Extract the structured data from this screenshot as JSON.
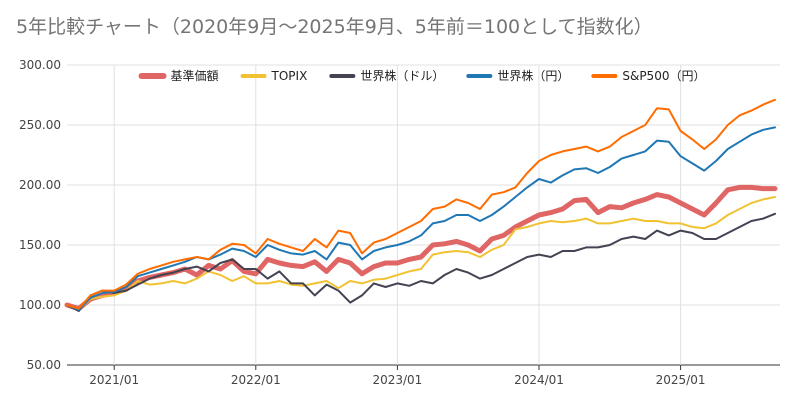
{
  "chart_data": {
    "type": "line",
    "title": "5年比較チャート（2020年9月～2025年9月、5年前＝100として指数化）",
    "xlabel": "",
    "ylabel": "",
    "ylim": [
      50,
      300
    ],
    "yticks": [
      "50.00",
      "100.00",
      "150.00",
      "200.00",
      "250.00",
      "300.00"
    ],
    "xtick_labels": [
      "2021/01",
      "2022/01",
      "2023/01",
      "2024/01",
      "2025/01"
    ],
    "x_start": "2020/09",
    "grid": true,
    "legend_position": "top",
    "x": [
      "2020/09",
      "2020/10",
      "2020/11",
      "2020/12",
      "2021/01",
      "2021/02",
      "2021/03",
      "2021/04",
      "2021/05",
      "2021/06",
      "2021/07",
      "2021/08",
      "2021/09",
      "2021/10",
      "2021/11",
      "2021/12",
      "2022/01",
      "2022/02",
      "2022/03",
      "2022/04",
      "2022/05",
      "2022/06",
      "2022/07",
      "2022/08",
      "2022/09",
      "2022/10",
      "2022/11",
      "2022/12",
      "2023/01",
      "2023/02",
      "2023/03",
      "2023/04",
      "2023/05",
      "2023/06",
      "2023/07",
      "2023/08",
      "2023/09",
      "2023/10",
      "2023/11",
      "2023/12",
      "2024/01",
      "2024/02",
      "2024/03",
      "2024/04",
      "2024/05",
      "2024/06",
      "2024/07",
      "2024/08",
      "2024/09",
      "2024/10",
      "2024/11",
      "2024/12",
      "2025/01",
      "2025/02",
      "2025/03",
      "2025/04",
      "2025/05",
      "2025/06",
      "2025/07",
      "2025/08",
      "2025/09"
    ],
    "series": [
      {
        "name": "基準価額",
        "color": "#e06666",
        "values": [
          100,
          97,
          105,
          108,
          110,
          113,
          120,
          123,
          125,
          127,
          130,
          125,
          133,
          130,
          137,
          128,
          126,
          138,
          135,
          133,
          132,
          136,
          128,
          138,
          135,
          126,
          132,
          135,
          135,
          138,
          140,
          150,
          151,
          153,
          150,
          145,
          155,
          158,
          165,
          170,
          175,
          177,
          180,
          187,
          188,
          177,
          182,
          181,
          185,
          188,
          192,
          190,
          185,
          180,
          175,
          185,
          196,
          198,
          198,
          197,
          197
        ],
        "width": 5
      },
      {
        "name": "TOPIX",
        "color": "#f1c232",
        "values": [
          100,
          96,
          105,
          107,
          108,
          112,
          120,
          117,
          118,
          120,
          118,
          122,
          128,
          125,
          120,
          124,
          118,
          118,
          120,
          117,
          116,
          118,
          120,
          114,
          120,
          118,
          121,
          122,
          125,
          128,
          130,
          142,
          144,
          145,
          144,
          140,
          146,
          150,
          163,
          165,
          168,
          170,
          169,
          170,
          172,
          168,
          168,
          170,
          172,
          170,
          170,
          168,
          168,
          165,
          164,
          168,
          175,
          180,
          185,
          188,
          190
        ],
        "width": 2
      },
      {
        "name": "世界株（ドル）",
        "color": "#434352",
        "values": [
          100,
          95,
          108,
          112,
          110,
          112,
          117,
          122,
          125,
          127,
          130,
          132,
          128,
          135,
          138,
          130,
          130,
          122,
          128,
          118,
          118,
          108,
          117,
          112,
          102,
          108,
          118,
          115,
          118,
          116,
          120,
          118,
          125,
          130,
          127,
          122,
          125,
          130,
          135,
          140,
          142,
          140,
          145,
          145,
          148,
          148,
          150,
          155,
          157,
          155,
          162,
          158,
          162,
          160,
          155,
          155,
          160,
          165,
          170,
          172,
          176
        ],
        "width": 2
      },
      {
        "name": "世界株（円）",
        "color": "#1f77b4",
        "values": [
          100,
          96,
          106,
          110,
          111,
          115,
          124,
          127,
          130,
          133,
          136,
          140,
          138,
          142,
          147,
          145,
          140,
          150,
          146,
          143,
          142,
          145,
          138,
          152,
          150,
          138,
          145,
          148,
          150,
          153,
          158,
          168,
          170,
          175,
          175,
          170,
          175,
          182,
          190,
          198,
          205,
          202,
          208,
          213,
          214,
          210,
          215,
          222,
          225,
          228,
          237,
          236,
          224,
          218,
          212,
          220,
          230,
          236,
          242,
          246,
          248
        ],
        "width": 2
      },
      {
        "name": "S&P500（円）",
        "color": "#ff6d01",
        "values": [
          100,
          97,
          108,
          112,
          112,
          117,
          126,
          130,
          133,
          136,
          138,
          140,
          138,
          146,
          151,
          150,
          143,
          155,
          151,
          148,
          145,
          155,
          148,
          162,
          160,
          143,
          152,
          155,
          160,
          165,
          170,
          180,
          182,
          188,
          185,
          180,
          192,
          194,
          198,
          210,
          220,
          225,
          228,
          230,
          232,
          228,
          232,
          240,
          245,
          250,
          264,
          263,
          245,
          238,
          230,
          238,
          250,
          258,
          262,
          267,
          271
        ],
        "width": 2
      }
    ]
  }
}
